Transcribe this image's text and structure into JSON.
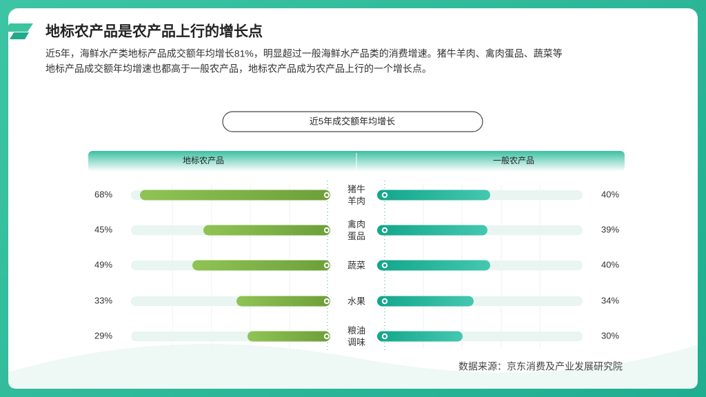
{
  "title": "地标农产品是农产品上行的增长点",
  "subtitle_lines": [
    "近5年，海鲜水产类地标产品成交额年均增长81%，明显超过一般海鲜水产品类的消费增速。猪牛羊肉、禽肉蛋品、蔬菜等",
    "地标产品成交额年均增速也都高于一般农产品，地标农产品成为农产品上行的一个增长点。"
  ],
  "source": "数据来源：京东消费及产业发展研究院",
  "chart_data": {
    "type": "butterfly",
    "title": "近5年成交额年均增长",
    "categories": [
      "猪牛羊肉",
      "禽肉蛋品",
      "蔬菜",
      "水果",
      "粮油调味"
    ],
    "xlim": [
      0,
      70
    ],
    "series": [
      {
        "name": "地标农产品",
        "color": "#7cb342",
        "values": [
          68,
          45,
          49,
          33,
          29
        ],
        "value_labels": [
          "68%",
          "45%",
          "49%",
          "33%",
          "29%"
        ]
      },
      {
        "name": "一般农产品",
        "color": "#1aaa8e",
        "values": [
          40,
          39,
          40,
          34,
          30
        ],
        "value_labels": [
          "40%",
          "39%",
          "40%",
          "34%",
          "30%"
        ]
      }
    ]
  }
}
